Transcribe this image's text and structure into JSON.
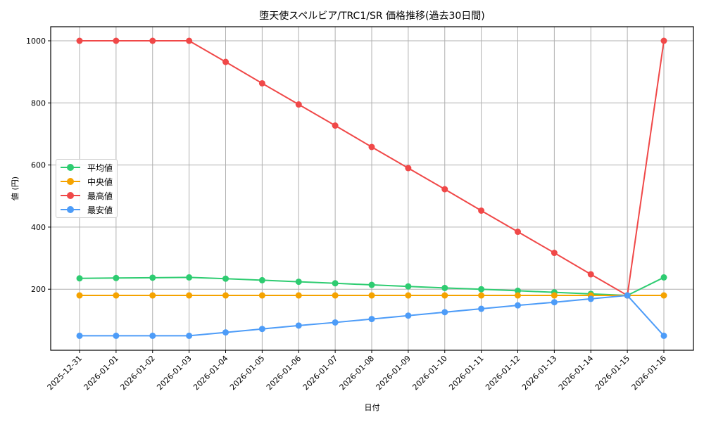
{
  "chart_data": {
    "type": "line",
    "title": "堕天使スペルビア/TRC1/SR 価格推移(過去30日間)",
    "xlabel": "日付",
    "ylabel": "値 (円)",
    "ylim": [
      0,
      1050
    ],
    "yticks": [
      200,
      400,
      600,
      800,
      1000
    ],
    "grid": true,
    "legend_position": "center left",
    "categories": [
      "2025-12-31",
      "2026-01-01",
      "2026-01-02",
      "2026-01-03",
      "2026-01-04",
      "2026-01-05",
      "2026-01-06",
      "2026-01-07",
      "2026-01-08",
      "2026-01-09",
      "2026-01-10",
      "2026-01-11",
      "2026-01-12",
      "2026-01-13",
      "2026-01-14",
      "2026-01-15",
      "2026-01-16"
    ],
    "series": [
      {
        "name": "平均値",
        "color": "#2ecc71",
        "values": [
          235,
          236,
          237,
          238,
          234,
          229,
          224,
          219,
          214,
          209,
          204,
          200,
          195,
          190,
          185,
          180,
          238
        ]
      },
      {
        "name": "中央値",
        "color": "#f5a300",
        "values": [
          180,
          180,
          180,
          180,
          180,
          180,
          180,
          180,
          180,
          180,
          180,
          180,
          180,
          180,
          180,
          180,
          180
        ]
      },
      {
        "name": "最高値",
        "color": "#f04848",
        "values": [
          1000,
          1000,
          1000,
          1000,
          932,
          863,
          795,
          727,
          658,
          590,
          522,
          453,
          385,
          317,
          248,
          180,
          1000
        ]
      },
      {
        "name": "最安値",
        "color": "#4d9cf8",
        "values": [
          50,
          50,
          50,
          50,
          61,
          72,
          83,
          93,
          104,
          115,
          126,
          137,
          148,
          158,
          169,
          180,
          50
        ]
      }
    ]
  }
}
